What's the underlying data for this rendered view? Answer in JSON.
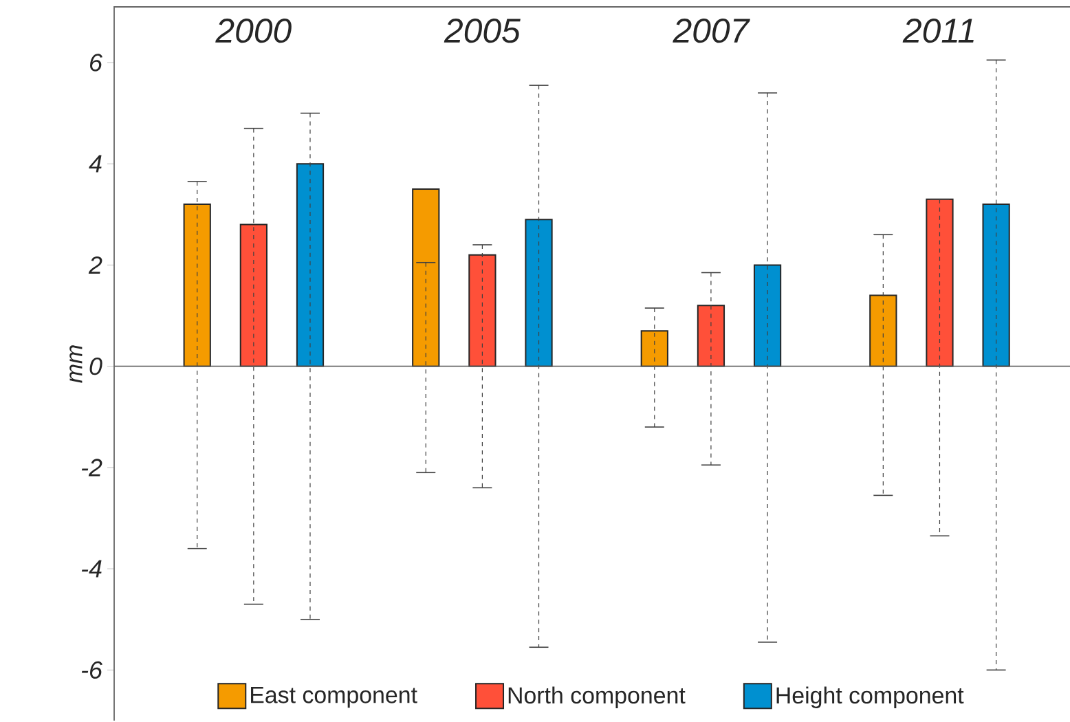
{
  "chart_data": {
    "type": "bar",
    "ylabel": "mm",
    "categories": [
      "2000",
      "2005",
      "2007",
      "2011"
    ],
    "series": [
      {
        "name": "East component",
        "color": "#f59b00",
        "values": [
          3.2,
          3.5,
          0.7,
          1.4
        ],
        "errors": [
          [
            -3.6,
            3.65
          ],
          [
            -2.1,
            2.05
          ],
          [
            -1.2,
            1.15
          ],
          [
            -2.55,
            2.6
          ]
        ]
      },
      {
        "name": "North component",
        "color": "#ff5039",
        "values": [
          2.8,
          2.2,
          1.2,
          3.3
        ],
        "errors": [
          [
            -4.7,
            4.7
          ],
          [
            -2.4,
            2.4
          ],
          [
            -1.95,
            1.85
          ],
          [
            -3.35,
            3.3
          ]
        ]
      },
      {
        "name": "Height component",
        "color": "#0090d0",
        "values": [
          4.0,
          2.9,
          2.0,
          3.2
        ],
        "errors": [
          [
            -5.0,
            5.0
          ],
          [
            -5.55,
            5.55
          ],
          [
            -5.45,
            5.4
          ],
          [
            -6.0,
            6.05
          ]
        ]
      }
    ],
    "ylim": [
      -7,
      7.1
    ],
    "yticks": [
      -6,
      -4,
      -2,
      0,
      2,
      4,
      6
    ],
    "legend": "bottom"
  }
}
